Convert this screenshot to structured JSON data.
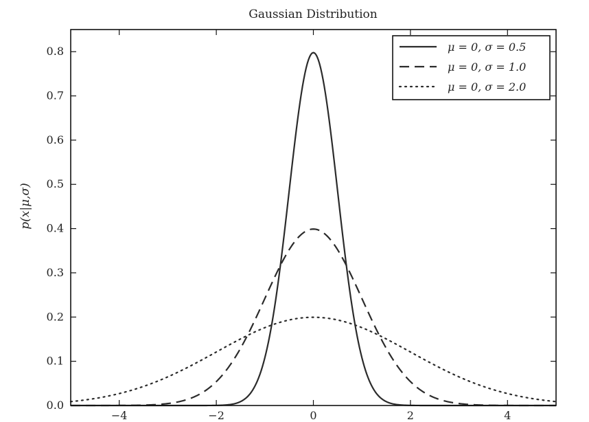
{
  "chart_data": {
    "type": "line",
    "title": "Gaussian Distribution",
    "xlabel": "",
    "ylabel": "p(x|μ,σ)",
    "xlim": [
      -5,
      5
    ],
    "ylim": [
      0,
      0.85
    ],
    "grid": false,
    "legend_placement": "top-right",
    "x_ticks": [
      -4,
      -2,
      0,
      2,
      4
    ],
    "x_tick_labels": [
      "−4",
      "−2",
      "0",
      "2",
      "4"
    ],
    "y_ticks": [
      0.0,
      0.1,
      0.2,
      0.3,
      0.4,
      0.5,
      0.6,
      0.7,
      0.8
    ],
    "y_tick_labels": [
      "0.0",
      "0.1",
      "0.2",
      "0.3",
      "0.4",
      "0.5",
      "0.6",
      "0.7",
      "0.8"
    ],
    "series": [
      {
        "name": "μ = 0,  σ = 0.5",
        "mu": 0,
        "sigma": 0.5,
        "style": "solid",
        "x": [
          -5,
          -4,
          -3,
          -2,
          -1.5,
          -1,
          -0.75,
          -0.5,
          -0.25,
          0,
          0.25,
          0.5,
          0.75,
          1,
          1.5,
          2,
          3,
          4,
          5
        ],
        "y": [
          0,
          0,
          0,
          0.0001,
          0.0089,
          0.108,
          0.259,
          0.484,
          0.704,
          0.798,
          0.704,
          0.484,
          0.259,
          0.108,
          0.0089,
          0.0001,
          0,
          0,
          0
        ]
      },
      {
        "name": "μ = 0,  σ = 1.0",
        "mu": 0,
        "sigma": 1.0,
        "style": "dashed",
        "x": [
          -5,
          -4,
          -3,
          -2,
          -1.5,
          -1,
          -0.5,
          0,
          0.5,
          1,
          1.5,
          2,
          3,
          4,
          5
        ],
        "y": [
          1.5e-06,
          0.0001,
          0.0044,
          0.054,
          0.13,
          0.242,
          0.352,
          0.399,
          0.352,
          0.242,
          0.13,
          0.054,
          0.0044,
          0.0001,
          1.5e-06
        ]
      },
      {
        "name": "μ = 0,  σ = 2.0",
        "mu": 0,
        "sigma": 2.0,
        "style": "dotted",
        "x": [
          -5,
          -4,
          -3,
          -2,
          -1,
          0,
          1,
          2,
          3,
          4,
          5
        ],
        "y": [
          0.0088,
          0.027,
          0.065,
          0.121,
          0.176,
          0.199,
          0.176,
          0.121,
          0.065,
          0.027,
          0.0088
        ]
      }
    ]
  }
}
